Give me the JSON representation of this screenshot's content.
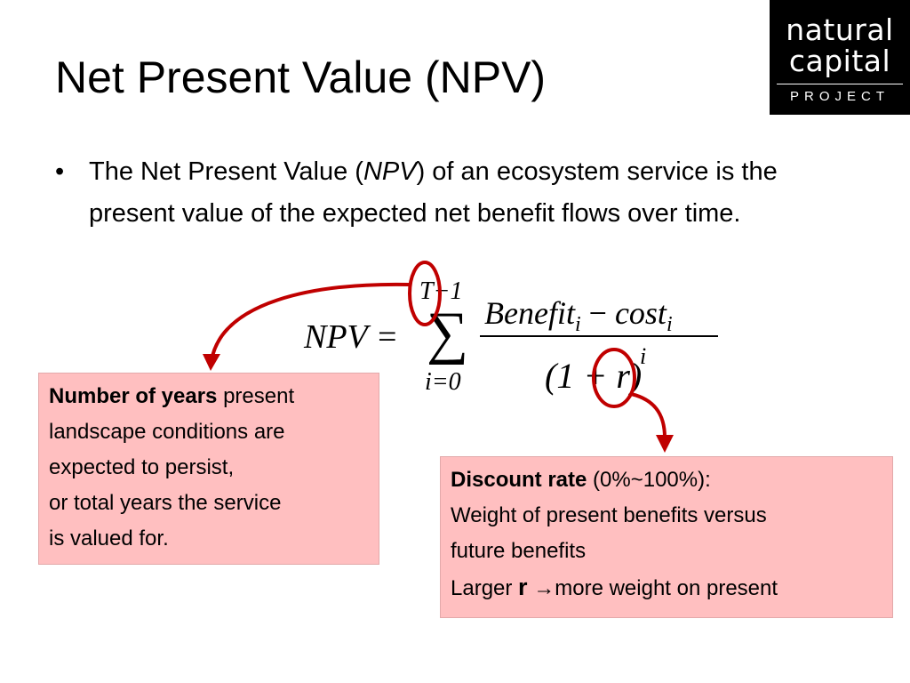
{
  "slide": {
    "title": "Net Present Value (NPV)",
    "bullet_glyph": "•",
    "bullet_parts": [
      "The Net Present Value (",
      "NPV",
      ") of an ecosystem service is the present value of the expected net benefit flows over time."
    ]
  },
  "logo": {
    "line1": "natural",
    "line2": "capital",
    "line3": "PROJECT"
  },
  "equation": {
    "lhs": "NPV =",
    "sum_symbol": "∑",
    "upper_limit": "T−1",
    "lower_limit": "i=0",
    "numerator": {
      "benefit": "Benefit",
      "benefit_sub": "i",
      "minus": " − ",
      "cost": "cost",
      "cost_sub": "i"
    },
    "denominator": "(1 + r)",
    "exponent": "i"
  },
  "annotations": {
    "years": {
      "bold": "Number of years",
      "rest": " present",
      "lines": [
        "landscape conditions are",
        "expected to persist,",
        "or total years the service",
        "is valued for."
      ]
    },
    "discount": {
      "bold": "Discount rate",
      "rest": " (0%~100%):",
      "line2": "Weight of present benefits versus",
      "line3": "future benefits",
      "line4_prefix": "Larger ",
      "line4_r": "r",
      "line4_arrow": " →",
      "line4_suffix": "more weight on present"
    }
  },
  "colors": {
    "box_fill": "#ffbfc0",
    "highlight": "#c00000",
    "logo_bg": "#000000"
  }
}
